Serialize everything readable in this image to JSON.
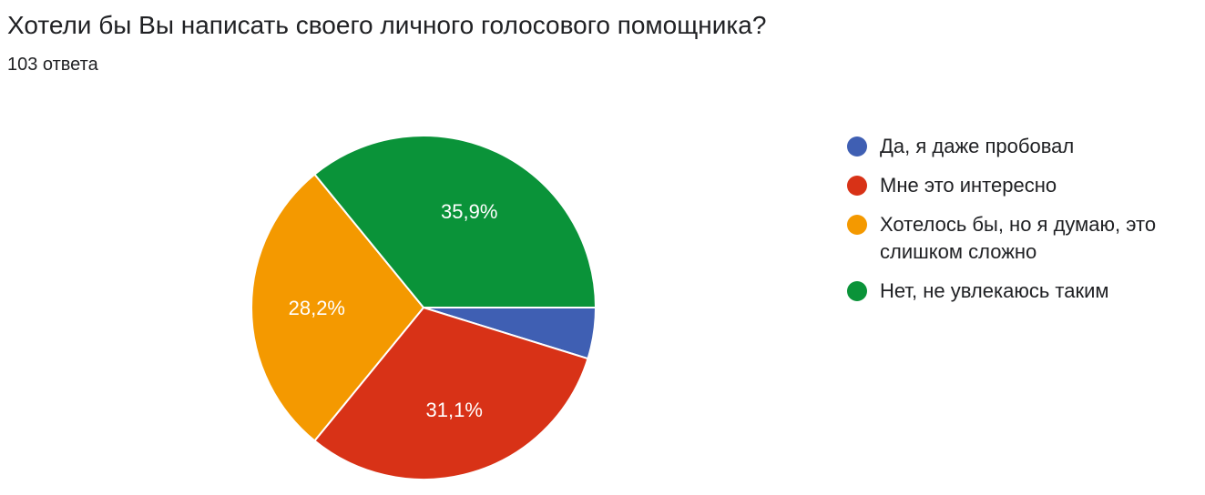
{
  "header": {
    "title": "Хотели бы Вы написать своего личного голосового помощника?",
    "subtitle": "103 ответа"
  },
  "chart_data": {
    "type": "pie",
    "title": "Хотели бы Вы написать своего личного голосового помощника?",
    "subtitle": "103 ответа",
    "legend_position": "right",
    "series": [
      {
        "name": "Да, я даже пробовал",
        "value": 4.8,
        "label": "",
        "color": "#3f5fb3"
      },
      {
        "name": "Мне это интересно",
        "value": 31.1,
        "label": "31,1%",
        "color": "#d83217"
      },
      {
        "name": "Хотелось бы, но я думаю, это слишком сложно",
        "value": 28.2,
        "label": "28,2%",
        "color": "#f49900"
      },
      {
        "name": "Нет, не увлекаюсь таким",
        "value": 35.9,
        "label": "35,9%",
        "color": "#0a9339"
      }
    ]
  }
}
